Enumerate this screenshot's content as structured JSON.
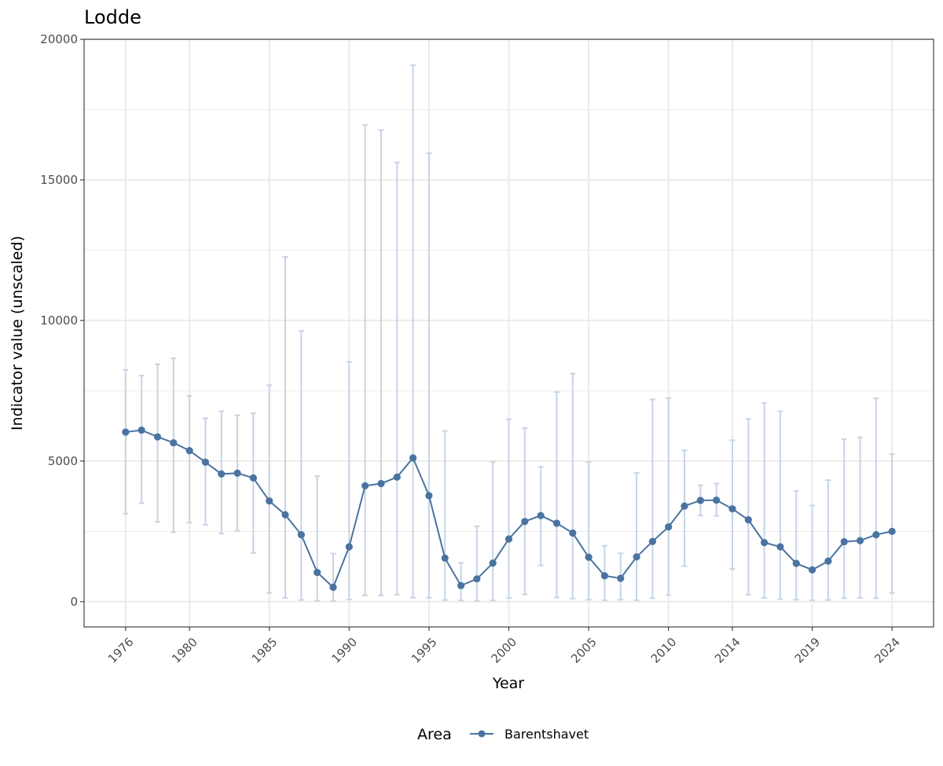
{
  "chart_data": {
    "type": "line",
    "title": "Lodde",
    "xlabel": "Year",
    "ylabel": "Indicator value (unscaled)",
    "xlim": [
      1973.4,
      2026.6
    ],
    "ylim": [
      -900,
      20000
    ],
    "x_ticks": [
      1976,
      1980,
      1985,
      1990,
      1995,
      2000,
      2005,
      2010,
      2014,
      2019,
      2024
    ],
    "x_tick_labels": [
      "1976",
      "1980",
      "1985",
      "1990",
      "1995",
      "2000",
      "2005",
      "2010",
      "2014",
      "2019",
      "2024"
    ],
    "y_ticks": [
      0,
      5000,
      10000,
      15000,
      20000
    ],
    "y_tick_labels": [
      "0",
      "5000",
      "10000",
      "15000",
      "20000"
    ],
    "grid": true,
    "legend": {
      "title": "Area",
      "position": "bottom",
      "entries": [
        "Barentshavet"
      ]
    },
    "colors": {
      "series": "#4a73a0",
      "error_bars": "#c7d4e4",
      "grid": "#ebebeb"
    },
    "series": [
      {
        "name": "Barentshavet",
        "x": [
          1976,
          1977,
          1978,
          1979,
          1980,
          1981,
          1982,
          1983,
          1984,
          1985,
          1986,
          1987,
          1988,
          1989,
          1990,
          1991,
          1992,
          1993,
          1994,
          1995,
          1996,
          1997,
          1998,
          1999,
          2000,
          2001,
          2002,
          2003,
          2004,
          2005,
          2006,
          2007,
          2008,
          2009,
          2010,
          2011,
          2012,
          2013,
          2014,
          2015,
          2016,
          2017,
          2018,
          2019,
          2020,
          2021,
          2022,
          2023,
          2024
        ],
        "y": [
          6030,
          6100,
          5860,
          5650,
          5370,
          4960,
          4540,
          4570,
          4400,
          3580,
          3090,
          2380,
          1040,
          510,
          1950,
          4120,
          4200,
          4430,
          5110,
          3770,
          1550,
          570,
          810,
          1370,
          2230,
          2850,
          3060,
          2790,
          2440,
          1580,
          920,
          830,
          1590,
          2140,
          2660,
          3400,
          3600,
          3610,
          3300,
          2910,
          2100,
          1950,
          1360,
          1130,
          1440,
          2130,
          2170,
          2380,
          2500
        ],
        "lower": [
          3130,
          3500,
          2840,
          2470,
          2810,
          2730,
          2420,
          2520,
          1730,
          310,
          130,
          60,
          30,
          20,
          80,
          220,
          220,
          250,
          140,
          140,
          60,
          40,
          30,
          40,
          130,
          260,
          1290,
          150,
          110,
          70,
          50,
          70,
          50,
          120,
          230,
          1260,
          3060,
          3050,
          1160,
          250,
          130,
          90,
          70,
          50,
          60,
          120,
          130,
          120,
          310
        ],
        "upper": [
          8240,
          8040,
          8440,
          8650,
          7320,
          6520,
          6770,
          6630,
          6700,
          7700,
          12260,
          9630,
          4460,
          1710,
          8530,
          16950,
          16770,
          15620,
          19080,
          15950,
          6070,
          1380,
          2680,
          4980,
          6490,
          6170,
          4790,
          7450,
          8110,
          4970,
          1990,
          1720,
          4580,
          7190,
          7240,
          5380,
          4140,
          4200,
          5740,
          6500,
          7060,
          6770,
          3930,
          3420,
          4320,
          5780,
          5840,
          7230,
          5250
        ]
      }
    ]
  }
}
